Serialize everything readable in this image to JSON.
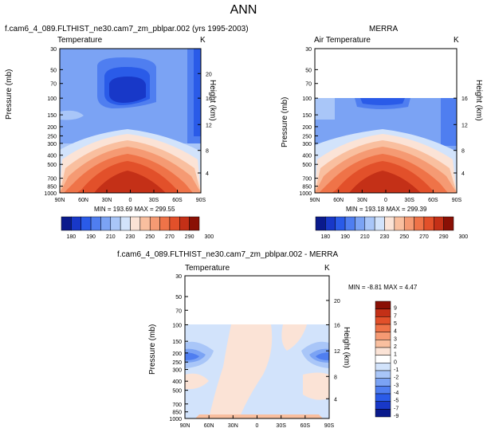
{
  "figure_title": "ANN",
  "colors": {
    "scale_abs": [
      "#0a1a8c",
      "#1838c8",
      "#2a5be8",
      "#4f7ef0",
      "#7ba3f4",
      "#a9c6f8",
      "#d2e3fb",
      "#fbe3d6",
      "#f9bf9f",
      "#f59a73",
      "#ef7348",
      "#e2502a",
      "#c43017",
      "#8a1005"
    ],
    "scale_diff": [
      "#0a1a8c",
      "#1838c8",
      "#2a5be8",
      "#4f7ef0",
      "#7ba3f4",
      "#a9c6f8",
      "#d2e3fb",
      "#ffffff",
      "#fbe3d6",
      "#f9bf9f",
      "#f59a73",
      "#ef7348",
      "#e2502a",
      "#c43017",
      "#8a1005"
    ]
  },
  "chart_data": [
    {
      "type": "heatmap",
      "title": "f.cam6_4_089.FLTHIST_ne30.cam7_zm_pblpar.002 (yrs 1995-2003)",
      "left_label": "Temperature",
      "right_label": "K",
      "ylabel": "Pressure (mb)",
      "ylabel_right": "Height (km)",
      "x_ticks": [
        "90N",
        "60N",
        "30N",
        "0",
        "30S",
        "60S",
        "90S"
      ],
      "y_ticks": [
        "30",
        "50",
        "70",
        "100",
        "150",
        "200",
        "250",
        "300",
        "400",
        "500",
        "700",
        "850",
        "1000"
      ],
      "y_ticks_right": [
        "20",
        "16",
        "12",
        "8",
        "4"
      ],
      "stats": "MIN = 193.69   MAX = 299.55",
      "colorbar_labels": [
        "180",
        "190",
        "210",
        "230",
        "250",
        "270",
        "290",
        "300"
      ]
    },
    {
      "type": "heatmap",
      "title": "MERRA",
      "left_label": "Air Temperature",
      "right_label": "K",
      "ylabel": "Pressure (mb)",
      "ylabel_right": "Height (km)",
      "x_ticks": [
        "90N",
        "60N",
        "30N",
        "0",
        "30S",
        "60S",
        "90S"
      ],
      "y_ticks": [
        "30",
        "50",
        "70",
        "100",
        "150",
        "200",
        "250",
        "300",
        "400",
        "500",
        "700",
        "850",
        "1000"
      ],
      "y_ticks_right": [
        "16",
        "12",
        "8",
        "4"
      ],
      "stats": "MIN = 193.18   MAX = 299.39",
      "colorbar_labels": [
        "180",
        "190",
        "210",
        "230",
        "250",
        "270",
        "290",
        "300"
      ]
    },
    {
      "type": "heatmap",
      "title": "f.cam6_4_089.FLTHIST_ne30.cam7_zm_pblpar.002 - MERRA",
      "left_label": "Temperature",
      "right_label": "K",
      "ylabel": "Pressure (mb)",
      "ylabel_right": "Height (km)",
      "x_ticks": [
        "90N",
        "60N",
        "30N",
        "0",
        "30S",
        "60S",
        "90S"
      ],
      "y_ticks": [
        "30",
        "50",
        "70",
        "100",
        "150",
        "200",
        "250",
        "300",
        "400",
        "500",
        "700",
        "850",
        "1000"
      ],
      "y_ticks_right": [
        "20",
        "16",
        "12",
        "8",
        "4"
      ],
      "stats": "MIN = -8.81   MAX =   4.47",
      "colorbar_labels": [
        "9",
        "7",
        "5",
        "4",
        "3",
        "2",
        "1",
        "0",
        "-1",
        "-2",
        "-3",
        "-4",
        "-5",
        "-7",
        "-9"
      ]
    }
  ]
}
